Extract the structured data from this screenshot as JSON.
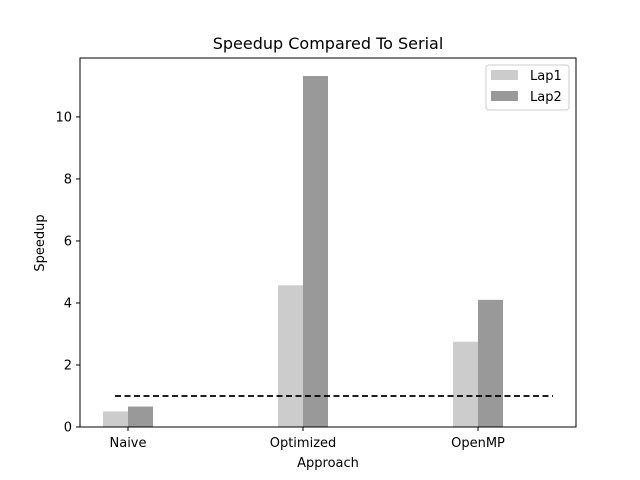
{
  "chart_data": {
    "type": "bar",
    "title": "Speedup Compared To Serial",
    "xlabel": "Approach",
    "ylabel": "Speedup",
    "categories": [
      "Naive",
      "Optimized",
      "OpenMP"
    ],
    "series": [
      {
        "name": "Lap1",
        "values": [
          0.5,
          4.57,
          2.75
        ],
        "color": "#cccccc"
      },
      {
        "name": "Lap2",
        "values": [
          0.66,
          11.32,
          4.1
        ],
        "color": "#999999"
      }
    ],
    "yticks": [
      0,
      2,
      4,
      6,
      8,
      10
    ],
    "ylim": [
      0,
      11.9
    ],
    "reference_line": {
      "value": 1.0,
      "style": "dashed",
      "color": "#000000"
    },
    "legend_position": "top-right",
    "grid": false
  }
}
